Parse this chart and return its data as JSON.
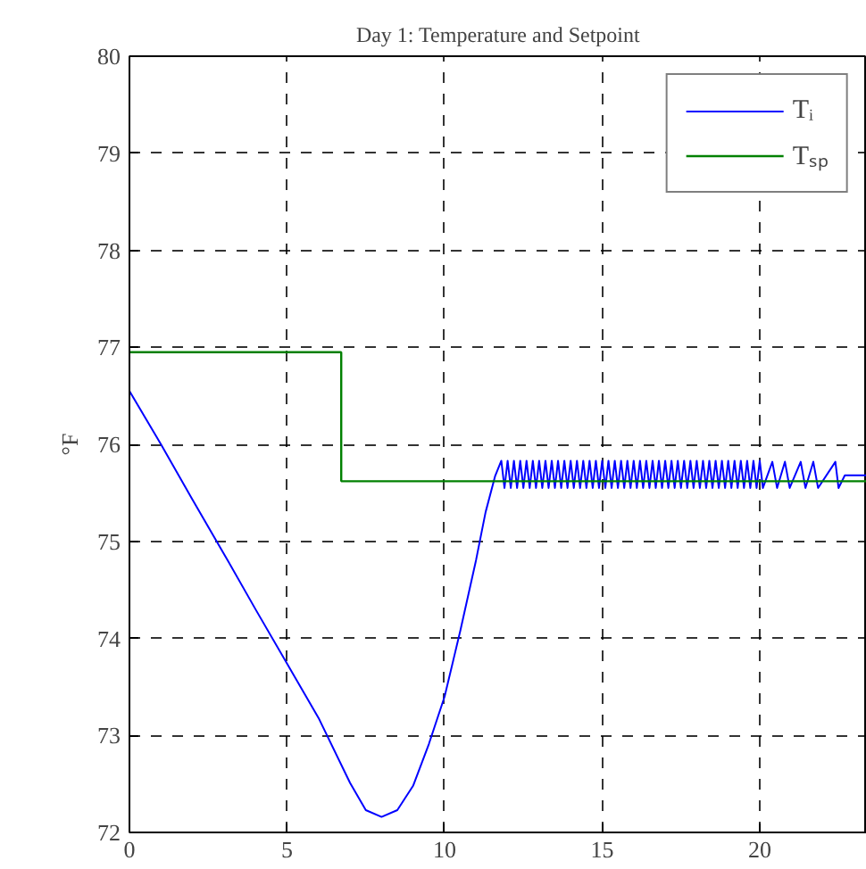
{
  "chart_data": {
    "type": "line",
    "title": "Day 1: Temperature and Setpoint",
    "ylabel": "°F",
    "xlim": [
      0,
      23.4
    ],
    "ylim": [
      72,
      80
    ],
    "xticks": [
      0,
      5,
      10,
      15,
      20
    ],
    "yticks": [
      72,
      73,
      74,
      75,
      76,
      77,
      78,
      79,
      80
    ],
    "grid": true,
    "legend": "top right",
    "line_style": "solid",
    "series": [
      {
        "name": "Tᵢ",
        "color": "#0000ff",
        "x": [
          0,
          1,
          2,
          3,
          4,
          5,
          6,
          7,
          7.5,
          8,
          8.5,
          9,
          9.5,
          10,
          10.5,
          11,
          11.3,
          11.6,
          11.8,
          11.9,
          12.0,
          12.1,
          12.2,
          12.3,
          12.4,
          12.5,
          12.6,
          12.7,
          12.8,
          12.9,
          13.0,
          13.1,
          13.2,
          13.3,
          13.4,
          13.5,
          13.6,
          13.7,
          13.8,
          13.9,
          14.0,
          14.1,
          14.2,
          14.3,
          14.4,
          14.5,
          14.6,
          14.7,
          14.8,
          14.9,
          15.0,
          15.1,
          15.2,
          15.3,
          15.4,
          15.5,
          15.6,
          15.7,
          15.8,
          15.9,
          16.0,
          16.1,
          16.2,
          16.3,
          16.4,
          16.5,
          16.6,
          16.7,
          16.8,
          16.9,
          17.0,
          17.1,
          17.2,
          17.3,
          17.4,
          17.5,
          17.6,
          17.7,
          17.8,
          17.9,
          18.0,
          18.1,
          18.2,
          18.3,
          18.4,
          18.5,
          18.6,
          18.7,
          18.8,
          18.9,
          19.0,
          19.1,
          19.2,
          19.3,
          19.4,
          19.5,
          19.6,
          19.7,
          19.8,
          19.9,
          20.0,
          20.1,
          20.4,
          20.55,
          20.8,
          20.95,
          21.3,
          21.45,
          21.7,
          21.85,
          22.4,
          22.5,
          22.7,
          23.4
        ],
        "values": [
          76.55,
          76.0,
          75.43,
          74.87,
          74.3,
          73.74,
          73.18,
          72.51,
          72.23,
          72.16,
          72.23,
          72.48,
          72.91,
          73.4,
          74.08,
          74.81,
          75.3,
          75.67,
          75.83,
          75.55,
          75.83,
          75.55,
          75.83,
          75.55,
          75.83,
          75.55,
          75.83,
          75.55,
          75.83,
          75.55,
          75.83,
          75.55,
          75.83,
          75.55,
          75.83,
          75.55,
          75.83,
          75.55,
          75.83,
          75.55,
          75.83,
          75.55,
          75.83,
          75.55,
          75.83,
          75.55,
          75.83,
          75.55,
          75.83,
          75.55,
          75.83,
          75.55,
          75.83,
          75.55,
          75.83,
          75.55,
          75.83,
          75.55,
          75.83,
          75.55,
          75.83,
          75.55,
          75.83,
          75.55,
          75.83,
          75.55,
          75.83,
          75.55,
          75.83,
          75.55,
          75.83,
          75.55,
          75.83,
          75.55,
          75.83,
          75.55,
          75.83,
          75.55,
          75.83,
          75.55,
          75.83,
          75.55,
          75.83,
          75.55,
          75.83,
          75.55,
          75.83,
          75.55,
          75.83,
          75.55,
          75.83,
          75.55,
          75.83,
          75.55,
          75.83,
          75.55,
          75.83,
          75.55,
          75.83,
          75.55,
          75.83,
          75.55,
          75.82,
          75.55,
          75.82,
          75.55,
          75.82,
          75.55,
          75.82,
          75.55,
          75.82,
          75.55,
          75.68,
          75.68
        ]
      },
      {
        "name": "Tₛₚ",
        "color": "#008000",
        "type": "step",
        "x": [
          0,
          6.72,
          23.4
        ],
        "values": [
          76.95,
          75.62,
          75.62
        ]
      }
    ]
  }
}
